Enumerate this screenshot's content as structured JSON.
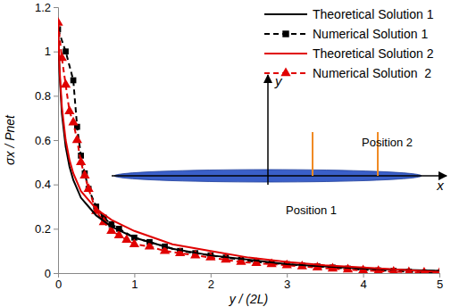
{
  "chart_data": {
    "type": "line",
    "x_label": "y / (2L)",
    "y_label": "σx / Pnet",
    "xlim": [
      0,
      5
    ],
    "xticks": [
      0,
      1,
      2,
      3,
      4,
      5
    ],
    "ylim": [
      0,
      1.2
    ],
    "yticks": [
      0,
      0.2,
      0.4,
      0.6,
      0.8,
      1,
      1.2
    ],
    "grid": false,
    "legend": "upper right",
    "annotations": [
      "y",
      "x",
      "Position 1",
      "Position 2"
    ],
    "series": [
      {
        "name": "Theoretical Solution 1",
        "color": "#000000",
        "line_style": "solid",
        "marker": "none",
        "x": [
          0,
          0.02,
          0.05,
          0.1,
          0.15,
          0.2,
          0.3,
          0.4,
          0.5,
          0.7,
          1,
          1.5,
          2,
          2.5,
          3,
          3.5,
          4,
          4.5,
          5
        ],
        "values": [
          1.1,
          0.9,
          0.72,
          0.57,
          0.48,
          0.42,
          0.34,
          0.3,
          0.26,
          0.21,
          0.16,
          0.11,
          0.08,
          0.06,
          0.04,
          0.03,
          0.02,
          0.015,
          0.01
        ]
      },
      {
        "name": "Numerical Solution 1",
        "color": "#000000",
        "line_style": "dashed",
        "marker": "square",
        "x": [
          0,
          0.1,
          0.2,
          0.25,
          0.3,
          0.35,
          0.4,
          0.5,
          0.6,
          0.7,
          0.8,
          1,
          1.2,
          1.4,
          1.6,
          1.8,
          2,
          2.2,
          2.4,
          2.6,
          2.8,
          3,
          3.2,
          3.4,
          3.6,
          3.8,
          4,
          4.2,
          4.4,
          4.6,
          4.8,
          4.9,
          5
        ],
        "values": [
          1.1,
          1.0,
          0.87,
          0.66,
          0.53,
          0.45,
          0.38,
          0.3,
          0.25,
          0.22,
          0.2,
          0.16,
          0.14,
          0.12,
          0.1,
          0.09,
          0.08,
          0.07,
          0.06,
          0.05,
          0.045,
          0.04,
          0.035,
          0.03,
          0.025,
          0.02,
          0.015,
          0.012,
          0.01,
          0.006,
          0.003,
          0,
          0
        ]
      },
      {
        "name": "Theoretical Solution 2",
        "color": "#e00000",
        "line_style": "solid",
        "marker": "none",
        "x": [
          0,
          0.02,
          0.05,
          0.1,
          0.15,
          0.2,
          0.3,
          0.4,
          0.5,
          0.7,
          1,
          1.5,
          2,
          2.5,
          3,
          3.5,
          4,
          4.5,
          5
        ],
        "values": [
          1.13,
          0.92,
          0.75,
          0.6,
          0.51,
          0.45,
          0.37,
          0.33,
          0.29,
          0.24,
          0.19,
          0.13,
          0.1,
          0.07,
          0.05,
          0.035,
          0.025,
          0.015,
          0.005
        ]
      },
      {
        "name": "Numerical Solution  2",
        "color": "#e00000",
        "line_style": "dashed",
        "marker": "triangle",
        "x": [
          0,
          0.05,
          0.1,
          0.15,
          0.2,
          0.25,
          0.3,
          0.35,
          0.4,
          0.5,
          0.6,
          0.7,
          0.8,
          0.9,
          1,
          1.2,
          1.4,
          1.6,
          1.8,
          2,
          2.2,
          2.4,
          2.6,
          2.8,
          3,
          3.2,
          3.4,
          3.6,
          3.8,
          4,
          4.2,
          4.4,
          4.6,
          4.8,
          5
        ],
        "values": [
          1.13,
          0.97,
          0.85,
          0.73,
          0.68,
          0.6,
          0.5,
          0.44,
          0.38,
          0.28,
          0.23,
          0.19,
          0.17,
          0.15,
          0.13,
          0.12,
          0.1,
          0.09,
          0.08,
          0.07,
          0.06,
          0.05,
          0.045,
          0.04,
          0.035,
          0.03,
          0.025,
          0.02,
          0.016,
          0.012,
          0.009,
          0.006,
          0.004,
          0.002,
          0
        ]
      }
    ]
  }
}
